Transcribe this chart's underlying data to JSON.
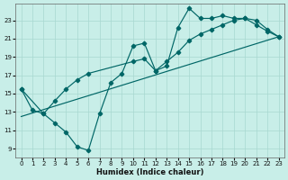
{
  "bg_color": "#c8eee8",
  "line_color": "#006666",
  "xlabel": "Humidex (Indice chaleur)",
  "xlim": [
    -0.5,
    23.5
  ],
  "ylim": [
    8.0,
    24.8
  ],
  "xticks": [
    0,
    1,
    2,
    3,
    4,
    5,
    6,
    7,
    8,
    9,
    10,
    11,
    12,
    13,
    14,
    15,
    16,
    17,
    18,
    19,
    20,
    21,
    22,
    23
  ],
  "yticks": [
    9,
    11,
    13,
    15,
    17,
    19,
    21,
    23
  ],
  "zigzag_x": [
    0,
    1,
    2,
    3,
    4,
    5,
    6,
    7,
    8,
    9,
    10,
    11,
    12,
    13,
    14,
    15,
    16,
    17,
    18,
    19,
    20,
    21,
    22,
    23
  ],
  "zigzag_y": [
    15.5,
    13.2,
    12.8,
    11.8,
    10.8,
    9.2,
    8.8,
    12.8,
    16.2,
    17.2,
    20.2,
    20.5,
    17.5,
    18.0,
    22.2,
    24.3,
    23.2,
    23.2,
    23.5,
    23.2,
    23.2,
    22.5,
    21.8,
    21.2
  ],
  "smooth_x": [
    0,
    2,
    3,
    4,
    5,
    6,
    10,
    11,
    12,
    13,
    14,
    15,
    16,
    17,
    18,
    19,
    20,
    21,
    22,
    23
  ],
  "smooth_y": [
    15.5,
    12.8,
    14.2,
    15.5,
    16.5,
    17.2,
    18.5,
    18.8,
    17.5,
    18.5,
    19.5,
    20.8,
    21.5,
    22.0,
    22.5,
    23.0,
    23.2,
    23.0,
    22.0,
    21.2
  ],
  "trend_x": [
    0,
    23
  ],
  "trend_y": [
    12.5,
    21.2
  ],
  "grid_color": "#a8d8d0"
}
